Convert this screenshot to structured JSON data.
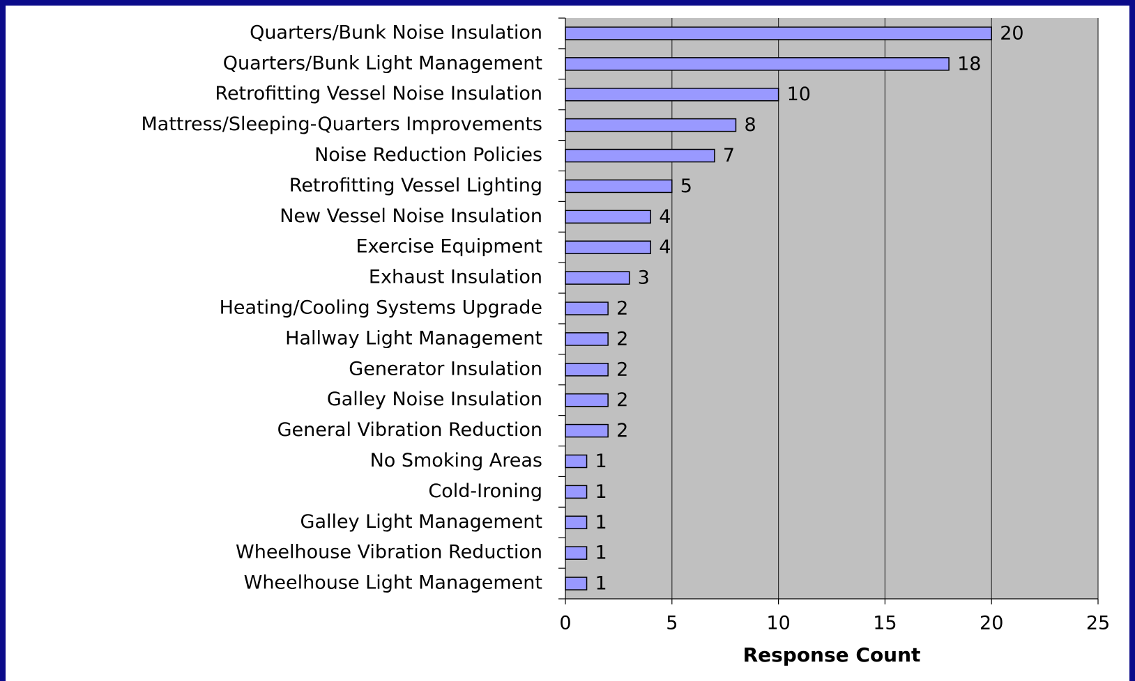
{
  "chart_data": {
    "type": "bar",
    "orientation": "horizontal",
    "xlabel": "Response Count",
    "categories": [
      "Quarters/Bunk Noise Insulation",
      "Quarters/Bunk Light Management",
      "Retrofitting Vessel Noise Insulation",
      "Mattress/Sleeping-Quarters Improvements",
      "Noise Reduction Policies",
      "Retrofitting Vessel Lighting",
      "New Vessel Noise Insulation",
      "Exercise Equipment",
      "Exhaust Insulation",
      "Heating/Cooling Systems Upgrade",
      "Hallway Light Management",
      "Generator Insulation",
      "Galley Noise Insulation",
      "General Vibration Reduction",
      "No Smoking Areas",
      "Cold-Ironing",
      "Galley Light Management",
      "Wheelhouse Vibration Reduction",
      "Wheelhouse Light Management"
    ],
    "values": [
      20,
      18,
      10,
      8,
      7,
      5,
      4,
      4,
      3,
      2,
      2,
      2,
      2,
      2,
      1,
      1,
      1,
      1,
      1
    ],
    "color": "#9999ff",
    "xlim": [
      0,
      25
    ],
    "xticks": [
      0,
      5,
      10,
      15,
      20,
      25
    ],
    "grid": true
  }
}
